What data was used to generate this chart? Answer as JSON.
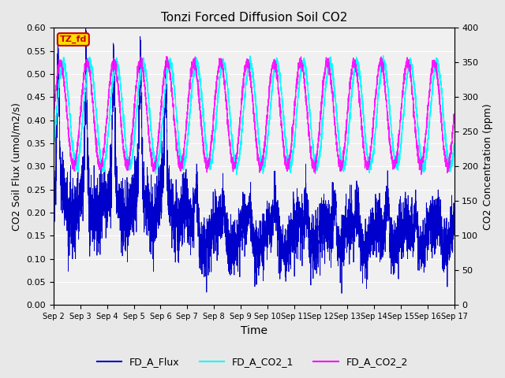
{
  "title": "Tonzi Forced Diffusion Soil CO2",
  "xlabel": "Time",
  "ylabel_left": "CO2 Soil Flux (umol/m2/s)",
  "ylabel_right": "CO2 Concentration (ppm)",
  "ylim_left": [
    0.0,
    0.6
  ],
  "ylim_right": [
    0,
    400
  ],
  "yticks_left": [
    0.0,
    0.05,
    0.1,
    0.15,
    0.2,
    0.25,
    0.3,
    0.35,
    0.4,
    0.45,
    0.5,
    0.55,
    0.6
  ],
  "yticks_right": [
    0,
    50,
    100,
    150,
    200,
    250,
    300,
    350,
    400
  ],
  "xtick_labels": [
    "Sep 2",
    "Sep 3",
    "Sep 4",
    "Sep 5",
    "Sep 6",
    "Sep 7",
    "Sep 8",
    "Sep 9",
    "Sep 10",
    "Sep 11",
    "Sep 12",
    "Sep 13",
    "Sep 14",
    "Sep 15",
    "Sep 16",
    "Sep 17"
  ],
  "colors": {
    "flux": "#0000cc",
    "co2_1": "#00ffff",
    "co2_2": "#ff00ff"
  },
  "legend_labels": [
    "FD_A_Flux",
    "FD_A_CO2_1",
    "FD_A_CO2_2"
  ],
  "annotation_text": "TZ_fd",
  "annotation_color": "#cc0000",
  "annotation_bg": "#ffdd00",
  "background_color": "#e8e8e8",
  "plot_bg_color": "#f0f0f0",
  "grid_color": "#ffffff",
  "n_days": 15,
  "ppd": 288,
  "seed": 42
}
